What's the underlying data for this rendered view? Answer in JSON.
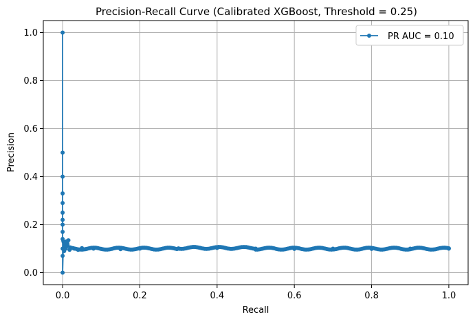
{
  "chart_data": {
    "type": "line",
    "title": "Precision-Recall Curve (Calibrated XGBoost, Threshold = 0.25)",
    "xlabel": "Recall",
    "ylabel": "Precision",
    "xlim": [
      -0.05,
      1.05
    ],
    "ylim": [
      -0.05,
      1.05
    ],
    "xticks": [
      "0.0",
      "0.2",
      "0.4",
      "0.6",
      "0.8",
      "1.0"
    ],
    "yticks": [
      "0.0",
      "0.2",
      "0.4",
      "0.6",
      "0.8",
      "1.0"
    ],
    "grid": true,
    "legend_position": "top-right",
    "color": "#1f77b4",
    "series": [
      {
        "name": "PR AUC = 0.10",
        "marker": "circle",
        "x": [
          0.0,
          0.0,
          0.0,
          0.0,
          0.0,
          0.0,
          0.0,
          0.0,
          0.0,
          0.0,
          0.0,
          0.0,
          0.0,
          0.002,
          0.004,
          0.006,
          0.008,
          0.01,
          0.012,
          0.015,
          0.018,
          0.02,
          0.03,
          0.04,
          0.05,
          0.06,
          0.08,
          0.1,
          0.15,
          0.2,
          0.3,
          0.4,
          0.5,
          0.6,
          0.7,
          0.8,
          0.9,
          1.0
        ],
        "y": [
          1.0,
          0.5,
          0.4,
          0.33,
          0.29,
          0.25,
          0.22,
          0.2,
          0.17,
          0.14,
          0.1,
          0.07,
          0.0,
          0.13,
          0.09,
          0.12,
          0.1,
          0.13,
          0.11,
          0.135,
          0.095,
          0.105,
          0.1,
          0.095,
          0.102,
          0.098,
          0.1,
          0.099,
          0.098,
          0.1,
          0.101,
          0.103,
          0.1,
          0.099,
          0.1,
          0.099,
          0.1,
          0.1
        ]
      }
    ]
  }
}
